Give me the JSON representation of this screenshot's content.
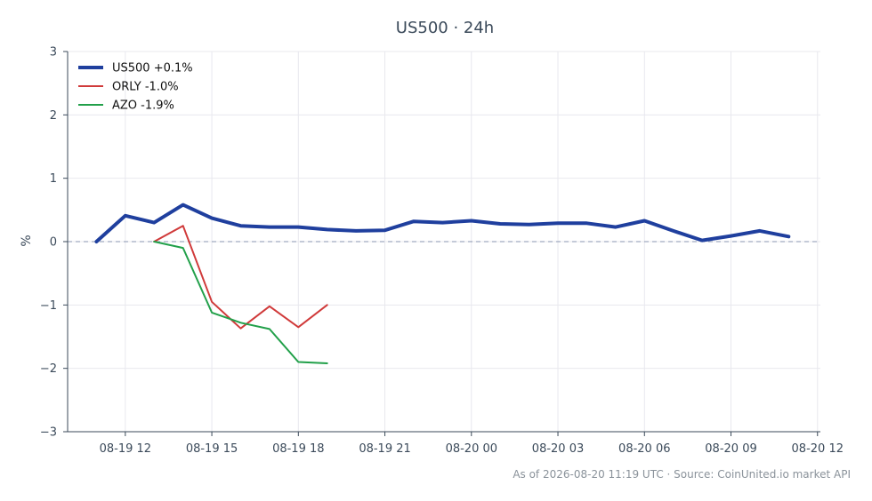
{
  "chart_data": {
    "type": "line",
    "title": "US500 · 24h",
    "xlabel": "",
    "ylabel": "%",
    "ylim": [
      -3,
      3
    ],
    "yticks": [
      -3,
      -2,
      -1,
      0,
      1,
      2,
      3
    ],
    "ytick_labels": [
      "−3",
      "−2",
      "−1",
      "0",
      "1",
      "2",
      "3"
    ],
    "xlim": [
      "2026-08-19 10:00",
      "2026-08-20 12:06"
    ],
    "xticks": [
      "2026-08-19 12:00",
      "2026-08-19 15:00",
      "2026-08-19 18:00",
      "2026-08-19 21:00",
      "2026-08-20 00:00",
      "2026-08-20 03:00",
      "2026-08-20 06:00",
      "2026-08-20 09:00",
      "2026-08-20 12:00"
    ],
    "xtick_labels": [
      "08-19 12",
      "08-19 15",
      "08-19 18",
      "08-19 21",
      "08-20 00",
      "08-20 03",
      "08-20 06",
      "08-20 09",
      "08-20 12"
    ],
    "grid": true,
    "baseline": 0,
    "legend_position": "top-left",
    "series": [
      {
        "name": "US500 +0.1%",
        "color": "#1f3f9e",
        "x": [
          "2026-08-19 11:00",
          "2026-08-19 12:00",
          "2026-08-19 13:00",
          "2026-08-19 14:00",
          "2026-08-19 15:00",
          "2026-08-19 16:00",
          "2026-08-19 17:00",
          "2026-08-19 18:00",
          "2026-08-19 19:00",
          "2026-08-19 20:00",
          "2026-08-19 21:00",
          "2026-08-19 22:00",
          "2026-08-19 23:00",
          "2026-08-20 00:00",
          "2026-08-20 01:00",
          "2026-08-20 02:00",
          "2026-08-20 03:00",
          "2026-08-20 04:00",
          "2026-08-20 05:00",
          "2026-08-20 06:00",
          "2026-08-20 07:00",
          "2026-08-20 08:00",
          "2026-08-20 09:00",
          "2026-08-20 10:00",
          "2026-08-20 11:00"
        ],
        "y": [
          0.0,
          0.41,
          0.3,
          0.58,
          0.37,
          0.25,
          0.23,
          0.23,
          0.19,
          0.17,
          0.18,
          0.32,
          0.3,
          0.33,
          0.28,
          0.27,
          0.29,
          0.29,
          0.23,
          0.33,
          0.17,
          0.02,
          0.09,
          0.17,
          0.08
        ]
      },
      {
        "name": "ORLY -1.0%",
        "color": "#d03a3a",
        "x": [
          "2026-08-19 13:00",
          "2026-08-19 14:00",
          "2026-08-19 15:00",
          "2026-08-19 16:00",
          "2026-08-19 17:00",
          "2026-08-19 18:00",
          "2026-08-19 19:00"
        ],
        "y": [
          0.0,
          0.25,
          -0.95,
          -1.37,
          -1.02,
          -1.35,
          -1.0
        ]
      },
      {
        "name": "AZO -1.9%",
        "color": "#22a04a",
        "x": [
          "2026-08-19 13:00",
          "2026-08-19 14:00",
          "2026-08-19 15:00",
          "2026-08-19 16:00",
          "2026-08-19 17:00",
          "2026-08-19 18:00",
          "2026-08-19 19:00"
        ],
        "y": [
          0.0,
          -0.1,
          -1.12,
          -1.28,
          -1.38,
          -1.9,
          -1.92
        ]
      }
    ],
    "footer": "As of 2026-08-20 11:19 UTC · Source: CoinUnited.io market API"
  }
}
